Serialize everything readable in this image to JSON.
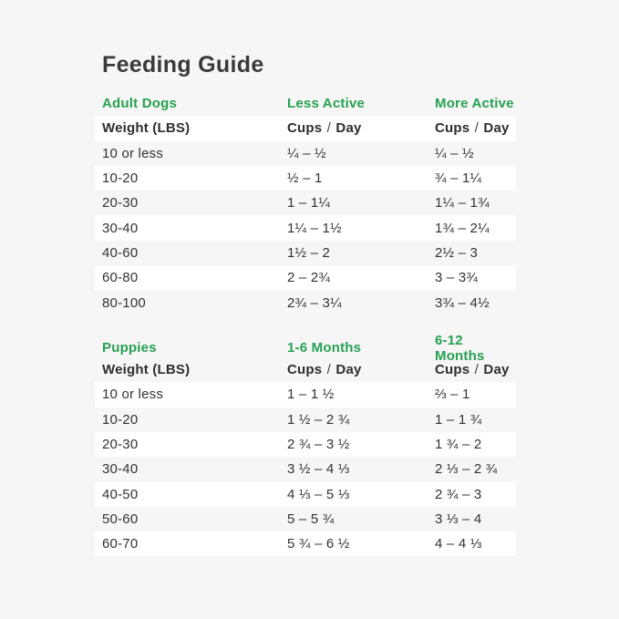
{
  "title": "Feeding Guide",
  "theme": {
    "accent_green": "#27a151",
    "title_color": "#3a3a3a",
    "text_color": "#333333",
    "background": "#f6f6f6",
    "stripe_white": "#ffffff"
  },
  "tables": [
    {
      "name": "adult-dogs",
      "group_headers": [
        "Adult Dogs",
        "Less Active",
        "More Active"
      ],
      "column_headers": [
        "Weight (LBS)",
        "Cups / Day",
        "Cups / Day"
      ],
      "header_row_white": true,
      "rows": [
        [
          "10 or less",
          "¼ – ½",
          "¼ – ½"
        ],
        [
          "10-20",
          "½ – 1",
          "¾ – 1¼"
        ],
        [
          "20-30",
          "1 – 1¼",
          "1¼ – 1¾"
        ],
        [
          "30-40",
          "1¼ – 1½",
          "1¾ – 2¼"
        ],
        [
          "40-60",
          "1½ – 2",
          "2½ – 3"
        ],
        [
          "60-80",
          "2 – 2¾",
          "3 – 3¾"
        ],
        [
          "80-100",
          "2¾ – 3¼",
          "3¾ – 4½"
        ]
      ]
    },
    {
      "name": "puppies",
      "group_headers": [
        "Puppies",
        "1-6 Months",
        "6-12 Months"
      ],
      "column_headers": [
        "Weight (LBS)",
        "Cups / Day",
        "Cups / Day"
      ],
      "header_row_white": false,
      "rows": [
        [
          "10 or less",
          "1 – 1 ½",
          "⅔ – 1"
        ],
        [
          "10-20",
          "1 ½ – 2 ¾",
          "1 – 1 ¾"
        ],
        [
          "20-30",
          "2 ¾ – 3 ½",
          "1 ¾ – 2"
        ],
        [
          "30-40",
          "3 ½ – 4 ⅓",
          "2 ⅓ – 2 ¾"
        ],
        [
          "40-50",
          "4 ⅓ – 5 ⅓",
          "2 ¾ – 3"
        ],
        [
          "50-60",
          "5 – 5 ¾",
          "3 ⅓ – 4"
        ],
        [
          "60-70",
          "5 ¾ – 6 ½",
          "4 – 4 ⅓"
        ]
      ]
    }
  ],
  "chart_data": [
    {
      "type": "table",
      "title": "Adult Dogs",
      "columns": [
        "Weight (LBS)",
        "Less Active Cups / Day",
        "More Active Cups / Day"
      ],
      "rows": [
        [
          "10 or less",
          "¼ – ½",
          "¼ – ½"
        ],
        [
          "10-20",
          "½ – 1",
          "¾ – 1¼"
        ],
        [
          "20-30",
          "1 – 1¼",
          "1¼ – 1¾"
        ],
        [
          "30-40",
          "1¼ – 1½",
          "1¾ – 2¼"
        ],
        [
          "40-60",
          "1½ – 2",
          "2½ – 3"
        ],
        [
          "60-80",
          "2 – 2¾",
          "3 – 3¾"
        ],
        [
          "80-100",
          "2¾ – 3¼",
          "3¾ – 4½"
        ]
      ]
    },
    {
      "type": "table",
      "title": "Puppies",
      "columns": [
        "Weight (LBS)",
        "1-6 Months Cups / Day",
        "6-12 Months Cups / Day"
      ],
      "rows": [
        [
          "10 or less",
          "1 – 1 ½",
          "⅔ – 1"
        ],
        [
          "10-20",
          "1 ½ – 2 ¾",
          "1 – 1 ¾"
        ],
        [
          "20-30",
          "2 ¾ – 3 ½",
          "1 ¾ – 2"
        ],
        [
          "30-40",
          "3 ½ – 4 ⅓",
          "2 ⅓ – 2 ¾"
        ],
        [
          "40-50",
          "4 ⅓ – 5 ⅓",
          "2 ¾ – 3"
        ],
        [
          "50-60",
          "5 – 5 ¾",
          "3 ⅓ – 4"
        ],
        [
          "60-70",
          "5 ¾ – 6 ½",
          "4 – 4 ⅓"
        ]
      ]
    }
  ]
}
